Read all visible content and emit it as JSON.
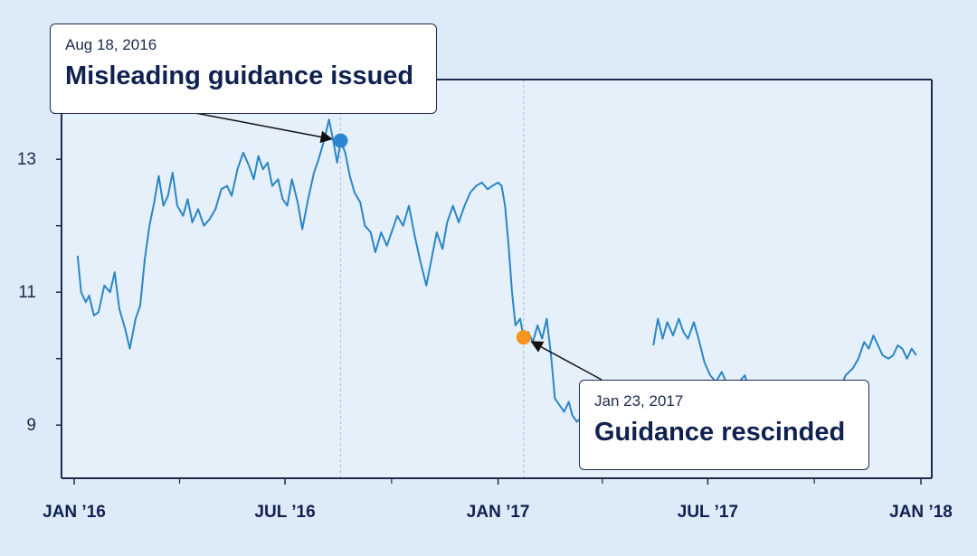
{
  "chart_data": {
    "type": "line",
    "title": "",
    "xlabel": "",
    "ylabel": "",
    "x_range": [
      "2016-01-01",
      "2018-01-01"
    ],
    "ylim": [
      8.2,
      14.2
    ],
    "yticks": [
      9,
      11,
      13
    ],
    "xtick_labels": [
      {
        "date": "2016-01-01",
        "label": "JAN ’16"
      },
      {
        "date": "2016-07-01",
        "label": "JUL ’16"
      },
      {
        "date": "2017-01-01",
        "label": "JAN ’17"
      },
      {
        "date": "2017-07-01",
        "label": "JUL ’17"
      },
      {
        "date": "2018-01-01",
        "label": "JAN ’18"
      }
    ],
    "minor_xticks": [
      "2016-04-01",
      "2016-10-01",
      "2017-04-01",
      "2017-10-01"
    ],
    "colors": {
      "line": "#2a86c6",
      "axis": "#1e2b4d",
      "background": "#ddeaf7",
      "plot_background": "#e6f0fb",
      "event1": "#2a86d1",
      "event2": "#f7941d"
    },
    "series": [
      {
        "values": [
          [
            "2016-01-04",
            11.55
          ],
          [
            "2016-01-07",
            11.0
          ],
          [
            "2016-01-11",
            10.85
          ],
          [
            "2016-01-14",
            10.95
          ],
          [
            "2016-01-18",
            10.65
          ],
          [
            "2016-01-22",
            10.7
          ],
          [
            "2016-01-27",
            11.1
          ],
          [
            "2016-02-01",
            11.0
          ],
          [
            "2016-02-05",
            11.3
          ],
          [
            "2016-02-09",
            10.75
          ],
          [
            "2016-02-14",
            10.45
          ],
          [
            "2016-02-18",
            10.15
          ],
          [
            "2016-02-23",
            10.6
          ],
          [
            "2016-02-27",
            10.8
          ],
          [
            "2016-03-02",
            11.5
          ],
          [
            "2016-03-06",
            12.0
          ],
          [
            "2016-03-10",
            12.35
          ],
          [
            "2016-03-14",
            12.75
          ],
          [
            "2016-03-18",
            12.3
          ],
          [
            "2016-03-22",
            12.45
          ],
          [
            "2016-03-26",
            12.8
          ],
          [
            "2016-03-30",
            12.3
          ],
          [
            "2016-04-04",
            12.15
          ],
          [
            "2016-04-08",
            12.4
          ],
          [
            "2016-04-12",
            12.05
          ],
          [
            "2016-04-17",
            12.25
          ],
          [
            "2016-04-22",
            12.0
          ],
          [
            "2016-04-27",
            12.1
          ],
          [
            "2016-05-02",
            12.25
          ],
          [
            "2016-05-07",
            12.55
          ],
          [
            "2016-05-12",
            12.6
          ],
          [
            "2016-05-16",
            12.45
          ],
          [
            "2016-05-21",
            12.85
          ],
          [
            "2016-05-26",
            13.1
          ],
          [
            "2016-05-31",
            12.9
          ],
          [
            "2016-06-04",
            12.7
          ],
          [
            "2016-06-08",
            13.05
          ],
          [
            "2016-06-12",
            12.85
          ],
          [
            "2016-06-16",
            12.95
          ],
          [
            "2016-06-20",
            12.6
          ],
          [
            "2016-06-25",
            12.7
          ],
          [
            "2016-06-29",
            12.4
          ],
          [
            "2016-07-03",
            12.3
          ],
          [
            "2016-07-07",
            12.7
          ],
          [
            "2016-07-12",
            12.35
          ],
          [
            "2016-07-16",
            11.95
          ],
          [
            "2016-07-21",
            12.4
          ],
          [
            "2016-07-26",
            12.8
          ],
          [
            "2016-07-30",
            13.0
          ],
          [
            "2016-08-04",
            13.3
          ],
          [
            "2016-08-08",
            13.6
          ],
          [
            "2016-08-12",
            13.25
          ],
          [
            "2016-08-15",
            12.95
          ],
          [
            "2016-08-18",
            13.28
          ],
          [
            "2016-08-22",
            13.1
          ],
          [
            "2016-08-26",
            12.75
          ],
          [
            "2016-08-30",
            12.5
          ],
          [
            "2016-09-04",
            12.35
          ],
          [
            "2016-09-08",
            12.0
          ],
          [
            "2016-09-13",
            11.9
          ],
          [
            "2016-09-17",
            11.6
          ],
          [
            "2016-09-22",
            11.9
          ],
          [
            "2016-09-27",
            11.7
          ],
          [
            "2016-10-02",
            11.95
          ],
          [
            "2016-10-06",
            12.15
          ],
          [
            "2016-10-11",
            12.0
          ],
          [
            "2016-10-16",
            12.3
          ],
          [
            "2016-10-21",
            11.85
          ],
          [
            "2016-10-26",
            11.45
          ],
          [
            "2016-10-31",
            11.1
          ],
          [
            "2016-11-05",
            11.55
          ],
          [
            "2016-11-09",
            11.9
          ],
          [
            "2016-11-14",
            11.65
          ],
          [
            "2016-11-18",
            12.05
          ],
          [
            "2016-11-23",
            12.3
          ],
          [
            "2016-11-28",
            12.05
          ],
          [
            "2016-12-03",
            12.3
          ],
          [
            "2016-12-08",
            12.5
          ],
          [
            "2016-12-13",
            12.6
          ],
          [
            "2016-12-18",
            12.65
          ],
          [
            "2016-12-23",
            12.55
          ],
          [
            "2016-12-27",
            12.6
          ],
          [
            "2017-01-01",
            12.65
          ],
          [
            "2017-01-04",
            12.6
          ],
          [
            "2017-01-07",
            12.3
          ],
          [
            "2017-01-10",
            11.7
          ],
          [
            "2017-01-13",
            11.0
          ],
          [
            "2017-01-16",
            10.5
          ],
          [
            "2017-01-20",
            10.6
          ],
          [
            "2017-01-23",
            10.32
          ],
          [
            "2017-01-27",
            10.4
          ],
          [
            "2017-01-31",
            10.25
          ],
          [
            "2017-02-04",
            10.5
          ],
          [
            "2017-02-08",
            10.3
          ],
          [
            "2017-02-12",
            10.6
          ],
          [
            "2017-02-16",
            10.0
          ],
          [
            "2017-02-19",
            9.4
          ],
          [
            "2017-02-23",
            9.3
          ],
          [
            "2017-02-27",
            9.2
          ],
          [
            "2017-03-03",
            9.35
          ],
          [
            "2017-03-06",
            9.15
          ],
          [
            "2017-03-10",
            9.05
          ],
          [
            "2017-03-13",
            9.1
          ],
          [
            "2017-05-15",
            10.2
          ],
          [
            "2017-05-19",
            10.6
          ],
          [
            "2017-05-23",
            10.3
          ],
          [
            "2017-05-27",
            10.55
          ],
          [
            "2017-06-01",
            10.35
          ],
          [
            "2017-06-06",
            10.6
          ],
          [
            "2017-06-10",
            10.4
          ],
          [
            "2017-06-14",
            10.3
          ],
          [
            "2017-06-19",
            10.55
          ],
          [
            "2017-06-23",
            10.3
          ],
          [
            "2017-06-28",
            9.95
          ],
          [
            "2017-07-03",
            9.75
          ],
          [
            "2017-07-08",
            9.65
          ],
          [
            "2017-07-13",
            9.8
          ],
          [
            "2017-07-18",
            9.6
          ],
          [
            "2017-07-23",
            9.55
          ],
          [
            "2017-07-28",
            9.65
          ],
          [
            "2017-08-02",
            9.75
          ],
          [
            "2017-08-06",
            9.5
          ],
          [
            "2017-10-23",
            9.55
          ],
          [
            "2017-10-28",
            9.75
          ],
          [
            "2017-11-03",
            9.85
          ],
          [
            "2017-11-08",
            10.0
          ],
          [
            "2017-11-13",
            10.25
          ],
          [
            "2017-11-17",
            10.15
          ],
          [
            "2017-11-21",
            10.35
          ],
          [
            "2017-11-25",
            10.2
          ],
          [
            "2017-11-29",
            10.05
          ],
          [
            "2017-12-04",
            10.0
          ],
          [
            "2017-12-08",
            10.05
          ],
          [
            "2017-12-12",
            10.2
          ],
          [
            "2017-12-16",
            10.15
          ],
          [
            "2017-12-20",
            10.0
          ],
          [
            "2017-12-24",
            10.15
          ],
          [
            "2017-12-28",
            10.05
          ]
        ]
      }
    ],
    "annotations": [
      {
        "date": "2016-08-18",
        "value": 13.28,
        "date_label": "Aug 18, 2016",
        "text": "Misleading guidance issued",
        "color": "#2a86d1"
      },
      {
        "date": "2017-01-23",
        "value": 10.32,
        "date_label": "Jan 23, 2017",
        "text": "Guidance rescinded",
        "color": "#f7941d"
      }
    ]
  }
}
